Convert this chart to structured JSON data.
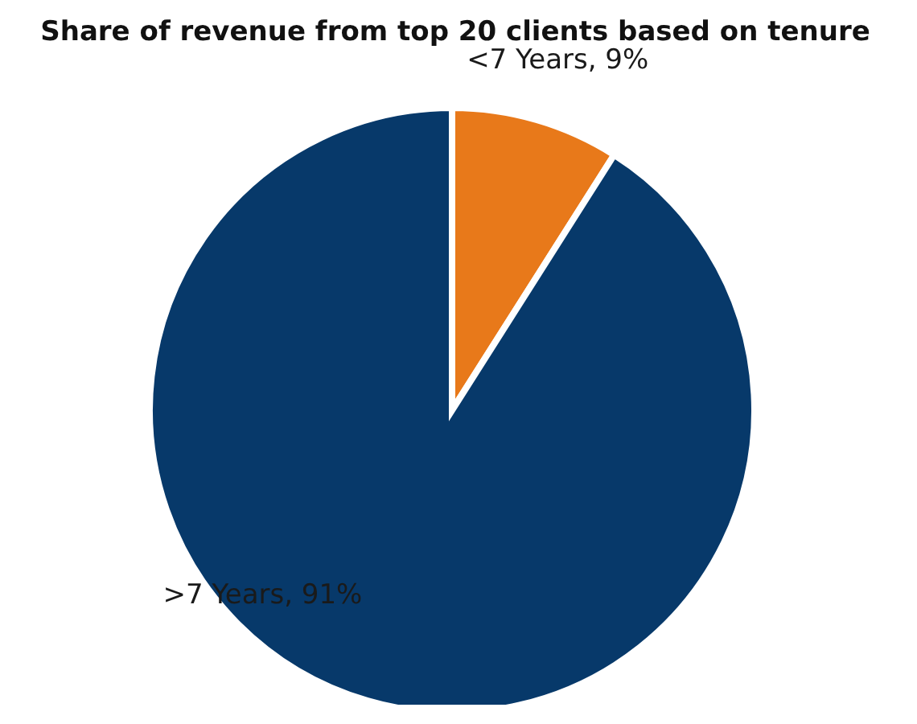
{
  "chart_data": {
    "type": "pie",
    "title": "Share of revenue from top 20 clients based on tenure",
    "categories": [
      "<7 Years, 9%",
      ">7 Years, 91%"
    ],
    "values": [
      9,
      91
    ],
    "colors": [
      "#e8791a",
      "#07396a"
    ],
    "legend": false
  }
}
